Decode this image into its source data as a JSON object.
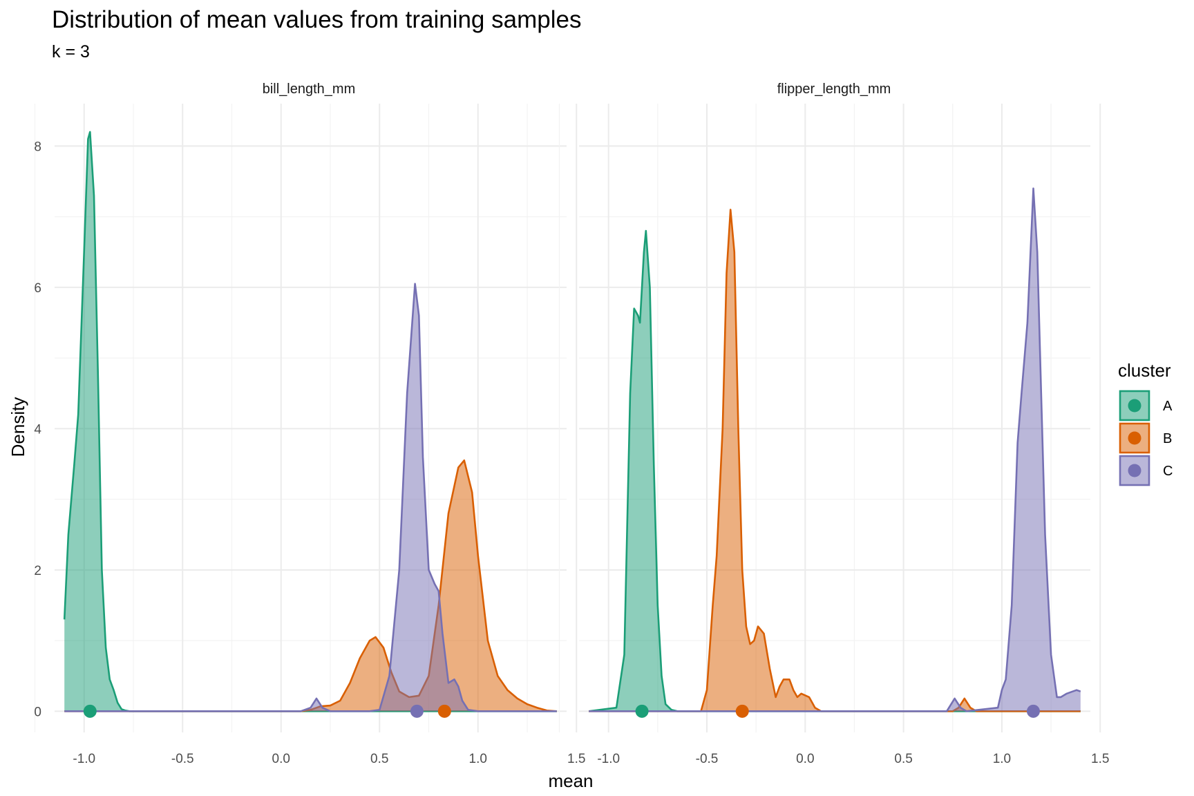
{
  "chart_data": {
    "type": "area",
    "title": "Distribution of mean values from training samples",
    "subtitle": "k = 3",
    "xlabel": "mean",
    "ylabel": "Density",
    "xlim": [
      -1.15,
      1.45
    ],
    "ylim": [
      -0.3,
      8.6
    ],
    "x_ticks": [
      -1.0,
      -0.5,
      0.0,
      0.5,
      1.0,
      1.5
    ],
    "x_tick_labels": [
      "-1.0",
      "-0.5",
      "0.0",
      "0.5",
      "1.0",
      "1.5"
    ],
    "y_ticks": [
      0,
      2,
      4,
      6,
      8
    ],
    "y_tick_labels": [
      "0",
      "2",
      "4",
      "6",
      "8"
    ],
    "grid": true,
    "legend": {
      "title": "cluster",
      "position": "right",
      "entries": [
        "A",
        "B",
        "C"
      ]
    },
    "colors": {
      "A": "#1b9e77",
      "B": "#d95f02",
      "C": "#7570b3"
    },
    "panels": [
      {
        "name": "bill_length_mm",
        "series": [
          {
            "name": "A",
            "mean_point": -0.97,
            "x": [
              -1.1,
              -1.08,
              -1.05,
              -1.03,
              -1.0,
              -0.98,
              -0.97,
              -0.95,
              -0.93,
              -0.91,
              -0.89,
              -0.87,
              -0.85,
              -0.83,
              -0.81,
              -0.79,
              -0.77,
              -0.75,
              -0.7,
              1.4
            ],
            "y": [
              1.3,
              2.5,
              3.5,
              4.2,
              6.5,
              8.1,
              8.2,
              7.3,
              4.8,
              2.0,
              0.9,
              0.45,
              0.3,
              0.12,
              0.03,
              0.01,
              0,
              0,
              0,
              0
            ]
          },
          {
            "name": "B",
            "mean_point": 0.83,
            "x": [
              -1.1,
              0.1,
              0.15,
              0.2,
              0.25,
              0.3,
              0.35,
              0.4,
              0.45,
              0.48,
              0.52,
              0.56,
              0.6,
              0.65,
              0.7,
              0.75,
              0.8,
              0.85,
              0.9,
              0.93,
              0.97,
              1.0,
              1.05,
              1.1,
              1.15,
              1.2,
              1.25,
              1.3,
              1.35,
              1.4
            ],
            "y": [
              0,
              0,
              0.02,
              0.07,
              0.08,
              0.15,
              0.4,
              0.75,
              1.0,
              1.05,
              0.9,
              0.55,
              0.28,
              0.2,
              0.22,
              0.5,
              1.5,
              2.8,
              3.45,
              3.55,
              3.1,
              2.2,
              1.0,
              0.5,
              0.3,
              0.18,
              0.1,
              0.05,
              0.01,
              0
            ]
          },
          {
            "name": "C",
            "mean_point": 0.69,
            "x": [
              -1.1,
              0.1,
              0.15,
              0.18,
              0.21,
              0.25,
              0.45,
              0.5,
              0.55,
              0.6,
              0.64,
              0.68,
              0.7,
              0.72,
              0.75,
              0.78,
              0.8,
              0.82,
              0.85,
              0.88,
              0.9,
              0.92,
              0.95,
              1.0,
              1.4
            ],
            "y": [
              0,
              0,
              0.05,
              0.18,
              0.05,
              0,
              0,
              0.02,
              0.5,
              2.0,
              4.5,
              6.05,
              5.6,
              3.6,
              2.0,
              1.8,
              1.7,
              1.1,
              0.4,
              0.45,
              0.35,
              0.15,
              0.02,
              0,
              0
            ]
          }
        ]
      },
      {
        "name": "flipper_length_mm",
        "series": [
          {
            "name": "A",
            "mean_point": -0.83,
            "x": [
              -1.1,
              -0.96,
              -0.92,
              -0.89,
              -0.87,
              -0.85,
              -0.84,
              -0.82,
              -0.81,
              -0.79,
              -0.77,
              -0.75,
              -0.73,
              -0.71,
              -0.68,
              -0.65,
              1.4
            ],
            "y": [
              0,
              0.05,
              0.8,
              4.5,
              5.7,
              5.6,
              5.5,
              6.5,
              6.8,
              6.0,
              3.5,
              1.5,
              0.5,
              0.1,
              0.02,
              0,
              0
            ]
          },
          {
            "name": "B",
            "mean_point": -0.32,
            "x": [
              -1.1,
              -0.53,
              -0.5,
              -0.47,
              -0.45,
              -0.42,
              -0.4,
              -0.38,
              -0.36,
              -0.34,
              -0.32,
              -0.3,
              -0.28,
              -0.26,
              -0.24,
              -0.21,
              -0.18,
              -0.15,
              -0.13,
              -0.11,
              -0.08,
              -0.06,
              -0.04,
              -0.02,
              0.02,
              0.05,
              0.08,
              0.1,
              0.75,
              0.78,
              0.81,
              0.84,
              0.87,
              1.4
            ],
            "y": [
              0,
              0,
              0.3,
              1.5,
              2.2,
              4.0,
              6.2,
              7.1,
              6.5,
              4.0,
              2.0,
              1.2,
              0.95,
              1.0,
              1.2,
              1.1,
              0.6,
              0.2,
              0.35,
              0.45,
              0.45,
              0.3,
              0.2,
              0.25,
              0.2,
              0.05,
              0,
              0,
              0,
              0.05,
              0.18,
              0.05,
              0,
              0
            ]
          },
          {
            "name": "C",
            "mean_point": 1.16,
            "x": [
              -1.1,
              0.72,
              0.76,
              0.79,
              0.82,
              0.98,
              1.0,
              1.02,
              1.05,
              1.08,
              1.1,
              1.13,
              1.16,
              1.18,
              1.2,
              1.22,
              1.25,
              1.28,
              1.3,
              1.33,
              1.36,
              1.38,
              1.4
            ],
            "y": [
              0,
              0,
              0.18,
              0.05,
              0,
              0.05,
              0.3,
              0.45,
              1.5,
              3.8,
              4.5,
              5.5,
              7.4,
              6.5,
              4.5,
              2.5,
              0.8,
              0.2,
              0.2,
              0.25,
              0.28,
              0.3,
              0.28
            ]
          }
        ]
      }
    ]
  }
}
